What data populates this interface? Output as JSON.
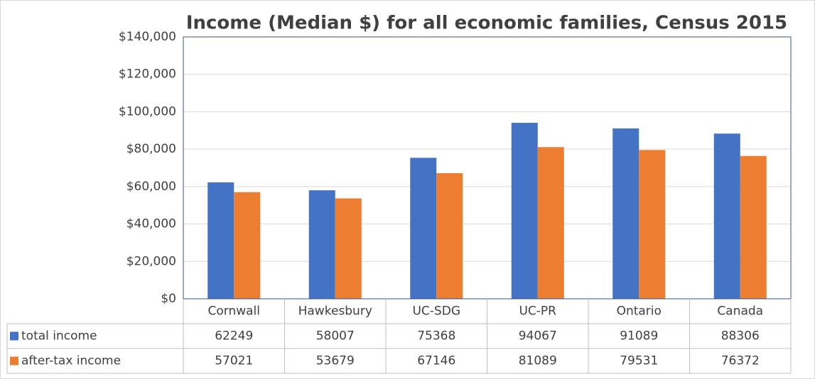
{
  "chart_data": {
    "type": "bar",
    "title": "Income (Median $) for all economic families, Census 2015",
    "categories": [
      "Cornwall",
      "Hawkesbury",
      "UC-SDG",
      "UC-PR",
      "Ontario",
      "Canada"
    ],
    "series": [
      {
        "name": "total income",
        "color": "#4472c4",
        "values": [
          62249,
          58007,
          75368,
          94067,
          91089,
          88306
        ]
      },
      {
        "name": "after-tax income",
        "color": "#ed7d31",
        "values": [
          57021,
          53679,
          67146,
          81089,
          79531,
          76372
        ]
      }
    ],
    "ylim": [
      0,
      140000
    ],
    "yticks": [
      {
        "value": 0,
        "label": "$0"
      },
      {
        "value": 20000,
        "label": "$20,000"
      },
      {
        "value": 40000,
        "label": "$40,000"
      },
      {
        "value": 60000,
        "label": "$60,000"
      },
      {
        "value": 80000,
        "label": "$80,000"
      },
      {
        "value": 100000,
        "label": "$100,000"
      },
      {
        "value": 120000,
        "label": "$120,000"
      },
      {
        "value": 140000,
        "label": "$140,000"
      }
    ],
    "grid": true
  }
}
